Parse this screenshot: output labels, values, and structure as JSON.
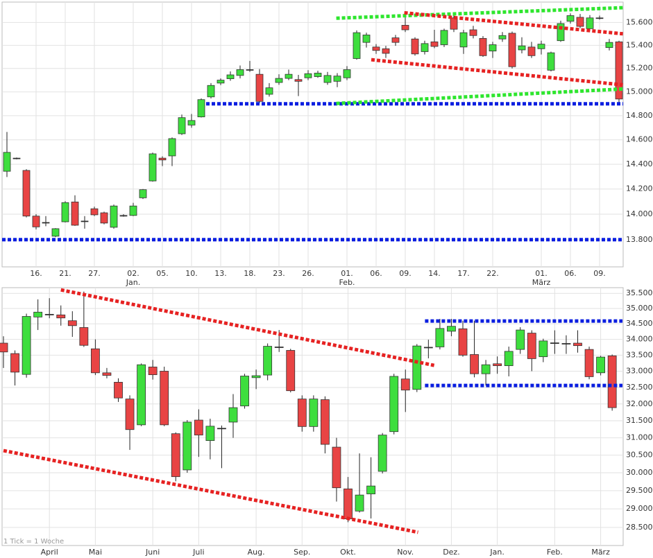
{
  "chart_data": [
    {
      "type": "candlestick",
      "log_scale": true,
      "grid": true,
      "up_color": "#3ede3e",
      "down_color": "#e84444",
      "ylim": [
        13590,
        15780
      ],
      "yticks": [
        {
          "value": 13800,
          "label": "13.800"
        },
        {
          "value": 14000,
          "label": "14.000"
        },
        {
          "value": 14200,
          "label": "14.200"
        },
        {
          "value": 14400,
          "label": "14.400"
        },
        {
          "value": 14600,
          "label": "14.600"
        },
        {
          "value": 14800,
          "label": "14.800"
        },
        {
          "value": 15000,
          "label": "15.000"
        },
        {
          "value": 15200,
          "label": "15.200"
        },
        {
          "value": 15400,
          "label": "15.400"
        },
        {
          "value": 15600,
          "label": "15.600"
        }
      ],
      "categories": [
        null,
        null,
        null,
        "16.",
        null,
        null,
        "21.",
        null,
        null,
        "27.",
        null,
        null,
        null,
        "02.",
        null,
        null,
        "05.",
        null,
        null,
        "10.",
        null,
        null,
        "13.",
        null,
        null,
        "18.",
        null,
        null,
        "23.",
        null,
        null,
        "26.",
        null,
        null,
        null,
        "01.",
        null,
        null,
        "06.",
        null,
        null,
        "09.",
        null,
        null,
        "14.",
        null,
        null,
        "17.",
        null,
        null,
        "22.",
        null,
        null,
        null,
        null,
        "01.",
        null,
        null,
        "06.",
        null,
        null,
        "09.",
        null,
        null
      ],
      "months": [
        null,
        null,
        null,
        null,
        null,
        null,
        null,
        null,
        null,
        null,
        null,
        null,
        null,
        "Jan.",
        null,
        null,
        null,
        null,
        null,
        null,
        null,
        null,
        null,
        null,
        null,
        null,
        null,
        null,
        null,
        null,
        null,
        null,
        null,
        null,
        null,
        "Feb.",
        null,
        null,
        null,
        null,
        null,
        null,
        null,
        null,
        null,
        null,
        null,
        null,
        null,
        null,
        null,
        null,
        null,
        null,
        null,
        "März",
        null,
        null,
        null,
        null,
        null,
        null,
        null,
        null
      ],
      "open": [
        14343,
        14450,
        14350,
        13985,
        13935,
        13827,
        13940,
        14097,
        13946,
        14043,
        14011,
        13897,
        13990,
        13990,
        14130,
        14265,
        14450,
        14468,
        14650,
        14722,
        14790,
        14958,
        15075,
        15112,
        15140,
        15190,
        15150,
        14980,
        15080,
        15115,
        15105,
        15120,
        15130,
        15080,
        15090,
        15120,
        15285,
        15425,
        15385,
        15370,
        15465,
        15575,
        15455,
        15345,
        15430,
        15405,
        15640,
        15385,
        15535,
        15460,
        15350,
        15455,
        15505,
        15360,
        15385,
        15370,
        15185,
        15440,
        15610,
        15645,
        15545,
        15640,
        15380,
        15430
      ],
      "high": [
        14665,
        14455,
        14360,
        14000,
        13985,
        13890,
        14103,
        14150,
        13985,
        14060,
        14020,
        14076,
        14000,
        14090,
        14200,
        14495,
        14465,
        14620,
        14810,
        14815,
        14945,
        15075,
        15115,
        15175,
        15225,
        15265,
        15195,
        15075,
        15150,
        15190,
        15145,
        15185,
        15180,
        15170,
        15160,
        15220,
        15530,
        15510,
        15410,
        15395,
        15490,
        15690,
        15470,
        15440,
        15535,
        15545,
        15680,
        15535,
        15570,
        15480,
        15430,
        15515,
        15520,
        15470,
        15430,
        15440,
        15345,
        15615,
        15680,
        15675,
        15665,
        15660,
        15455,
        15440
      ],
      "low": [
        14297,
        14440,
        13975,
        13880,
        13905,
        13820,
        13935,
        13908,
        13886,
        13985,
        13920,
        13886,
        13980,
        13985,
        14120,
        14260,
        14385,
        14385,
        14640,
        14700,
        14785,
        14945,
        15058,
        15095,
        15115,
        15170,
        14905,
        14960,
        15060,
        15100,
        14965,
        15100,
        15120,
        15060,
        15040,
        15100,
        15275,
        15380,
        15325,
        15290,
        15395,
        15515,
        15310,
        15320,
        15375,
        15385,
        15515,
        15325,
        15460,
        15300,
        15290,
        15430,
        15200,
        15330,
        15290,
        15320,
        15175,
        15430,
        15590,
        15550,
        15525,
        15625,
        15355,
        14890
      ],
      "close": [
        14497,
        14450,
        13985,
        13900,
        13935,
        13886,
        14092,
        13913,
        13946,
        13995,
        13930,
        14065,
        13990,
        14065,
        14195,
        14485,
        14435,
        14610,
        14784,
        14760,
        14935,
        15055,
        15100,
        15145,
        15190,
        15190,
        14920,
        15035,
        15115,
        15150,
        15090,
        15155,
        15160,
        15140,
        15135,
        15190,
        15510,
        15490,
        15355,
        15330,
        15425,
        15535,
        15325,
        15415,
        15390,
        15530,
        15540,
        15510,
        15485,
        15310,
        15405,
        15485,
        15215,
        15395,
        15310,
        15410,
        15335,
        15590,
        15660,
        15565,
        15640,
        15640,
        15425,
        14940
      ],
      "lines": [
        {
          "color": "#0a1ee0",
          "x": [
            -0.5,
            63.5
          ],
          "y": [
            13800,
            13800
          ]
        },
        {
          "color": "#0a1ee0",
          "x": [
            20.5,
            63.5
          ],
          "y": [
            14900,
            14900
          ]
        },
        {
          "color": "#2ee62e",
          "x": [
            33.9,
            63.4
          ],
          "y": [
            15637,
            15730
          ]
        },
        {
          "color": "#2ee62e",
          "x": [
            33.9,
            63.4
          ],
          "y": [
            14903,
            15025
          ]
        },
        {
          "color": "#e62222",
          "x": [
            40.9,
            63.4
          ],
          "y": [
            15685,
            15500
          ]
        },
        {
          "color": "#e62222",
          "x": [
            37.5,
            63.4
          ],
          "y": [
            15275,
            15060
          ]
        }
      ]
    },
    {
      "type": "candlestick",
      "log_scale": true,
      "grid": true,
      "up_color": "#3ede3e",
      "down_color": "#e84444",
      "annotation": "1 Tick = 1 Woche",
      "ylim": [
        28020,
        35690
      ],
      "yticks": [
        {
          "value": 28500,
          "label": "28.500"
        },
        {
          "value": 29000,
          "label": "29.000"
        },
        {
          "value": 29500,
          "label": "29.500"
        },
        {
          "value": 30000,
          "label": "30.000"
        },
        {
          "value": 30500,
          "label": "30.500"
        },
        {
          "value": 31000,
          "label": "31.000"
        },
        {
          "value": 31500,
          "label": "31.500"
        },
        {
          "value": 32000,
          "label": "32.000"
        },
        {
          "value": 32500,
          "label": "32.500"
        },
        {
          "value": 33000,
          "label": "33.000"
        },
        {
          "value": 33500,
          "label": "33.500"
        },
        {
          "value": 34000,
          "label": "34.000"
        },
        {
          "value": 34500,
          "label": "34.500"
        },
        {
          "value": 35000,
          "label": "35.000"
        },
        {
          "value": 35500,
          "label": "35.500"
        }
      ],
      "categories": [
        null,
        null,
        null,
        null,
        "April",
        null,
        null,
        null,
        "Mai",
        null,
        null,
        null,
        null,
        "Juni",
        null,
        null,
        null,
        "Juli",
        null,
        null,
        null,
        null,
        "Aug.",
        null,
        null,
        null,
        "Sep.",
        null,
        null,
        null,
        "Okt.",
        null,
        null,
        null,
        null,
        "Nov.",
        null,
        null,
        null,
        "Dez.",
        null,
        null,
        null,
        "Jan.",
        null,
        null,
        null,
        null,
        "Feb.",
        null,
        null,
        null,
        "März",
        null
      ],
      "open": [
        33880,
        33550,
        32900,
        34720,
        34810,
        34790,
        34600,
        34380,
        33700,
        32950,
        32660,
        32150,
        31380,
        33130,
        33000,
        31120,
        30080,
        31520,
        30920,
        31280,
        31460,
        31940,
        32800,
        32880,
        33760,
        33650,
        32150,
        31330,
        32130,
        30730,
        29550,
        28940,
        29410,
        30040,
        31180,
        32760,
        32440,
        33750,
        33760,
        34260,
        34340,
        33520,
        32920,
        33230,
        33170,
        33680,
        34200,
        33450,
        33890,
        33870,
        33880,
        33680,
        32950,
        33480
      ],
      "high": [
        34100,
        33650,
        34830,
        35300,
        35340,
        35100,
        34910,
        35560,
        34000,
        33100,
        32780,
        32260,
        33240,
        33350,
        33140,
        31160,
        31520,
        31840,
        31560,
        31360,
        32300,
        32920,
        33050,
        33870,
        34300,
        33700,
        32260,
        32260,
        32230,
        31000,
        29880,
        30550,
        30440,
        31140,
        32920,
        33050,
        33850,
        33990,
        34660,
        34660,
        34600,
        34600,
        33350,
        33460,
        33770,
        34390,
        34290,
        34020,
        34290,
        34130,
        34290,
        33770,
        33480,
        33520
      ],
      "low": [
        33100,
        32560,
        32800,
        34300,
        34680,
        34440,
        34080,
        33760,
        32880,
        32780,
        32060,
        30650,
        31340,
        32740,
        31340,
        29760,
        30000,
        30450,
        30380,
        30130,
        31000,
        31860,
        32450,
        32720,
        33600,
        32350,
        31180,
        31180,
        30550,
        29200,
        28640,
        28900,
        28740,
        29980,
        31100,
        31760,
        32360,
        33400,
        33680,
        34100,
        33450,
        32810,
        32560,
        32920,
        32840,
        33540,
        33000,
        33280,
        33540,
        33540,
        33580,
        32750,
        32870,
        31800
      ],
      "close": [
        33600,
        32970,
        34740,
        34880,
        34810,
        34690,
        34440,
        33810,
        32950,
        32870,
        32180,
        31240,
        33200,
        32890,
        31380,
        29890,
        31460,
        31080,
        31340,
        31280,
        31890,
        32850,
        32860,
        33780,
        33760,
        32400,
        31330,
        32150,
        30810,
        29580,
        28730,
        29380,
        29630,
        31080,
        32840,
        32420,
        33790,
        33750,
        34350,
        34420,
        33500,
        32920,
        33200,
        33170,
        33620,
        34300,
        33390,
        33950,
        33890,
        33870,
        33800,
        32830,
        33440,
        31890
      ],
      "lines": [
        {
          "color": "#e62222",
          "x": [
            5.0,
            37.5
          ],
          "y": [
            35616,
            33180
          ]
        },
        {
          "color": "#e62222",
          "x": [
            0,
            36.1
          ],
          "y": [
            30630,
            28370
          ]
        },
        {
          "color": "#0a1ee0",
          "x": [
            36.7,
            53.9
          ],
          "y": [
            34590,
            34590
          ]
        },
        {
          "color": "#0a1ee0",
          "x": [
            36.7,
            53.9
          ],
          "y": [
            32560,
            32560
          ]
        }
      ]
    }
  ]
}
